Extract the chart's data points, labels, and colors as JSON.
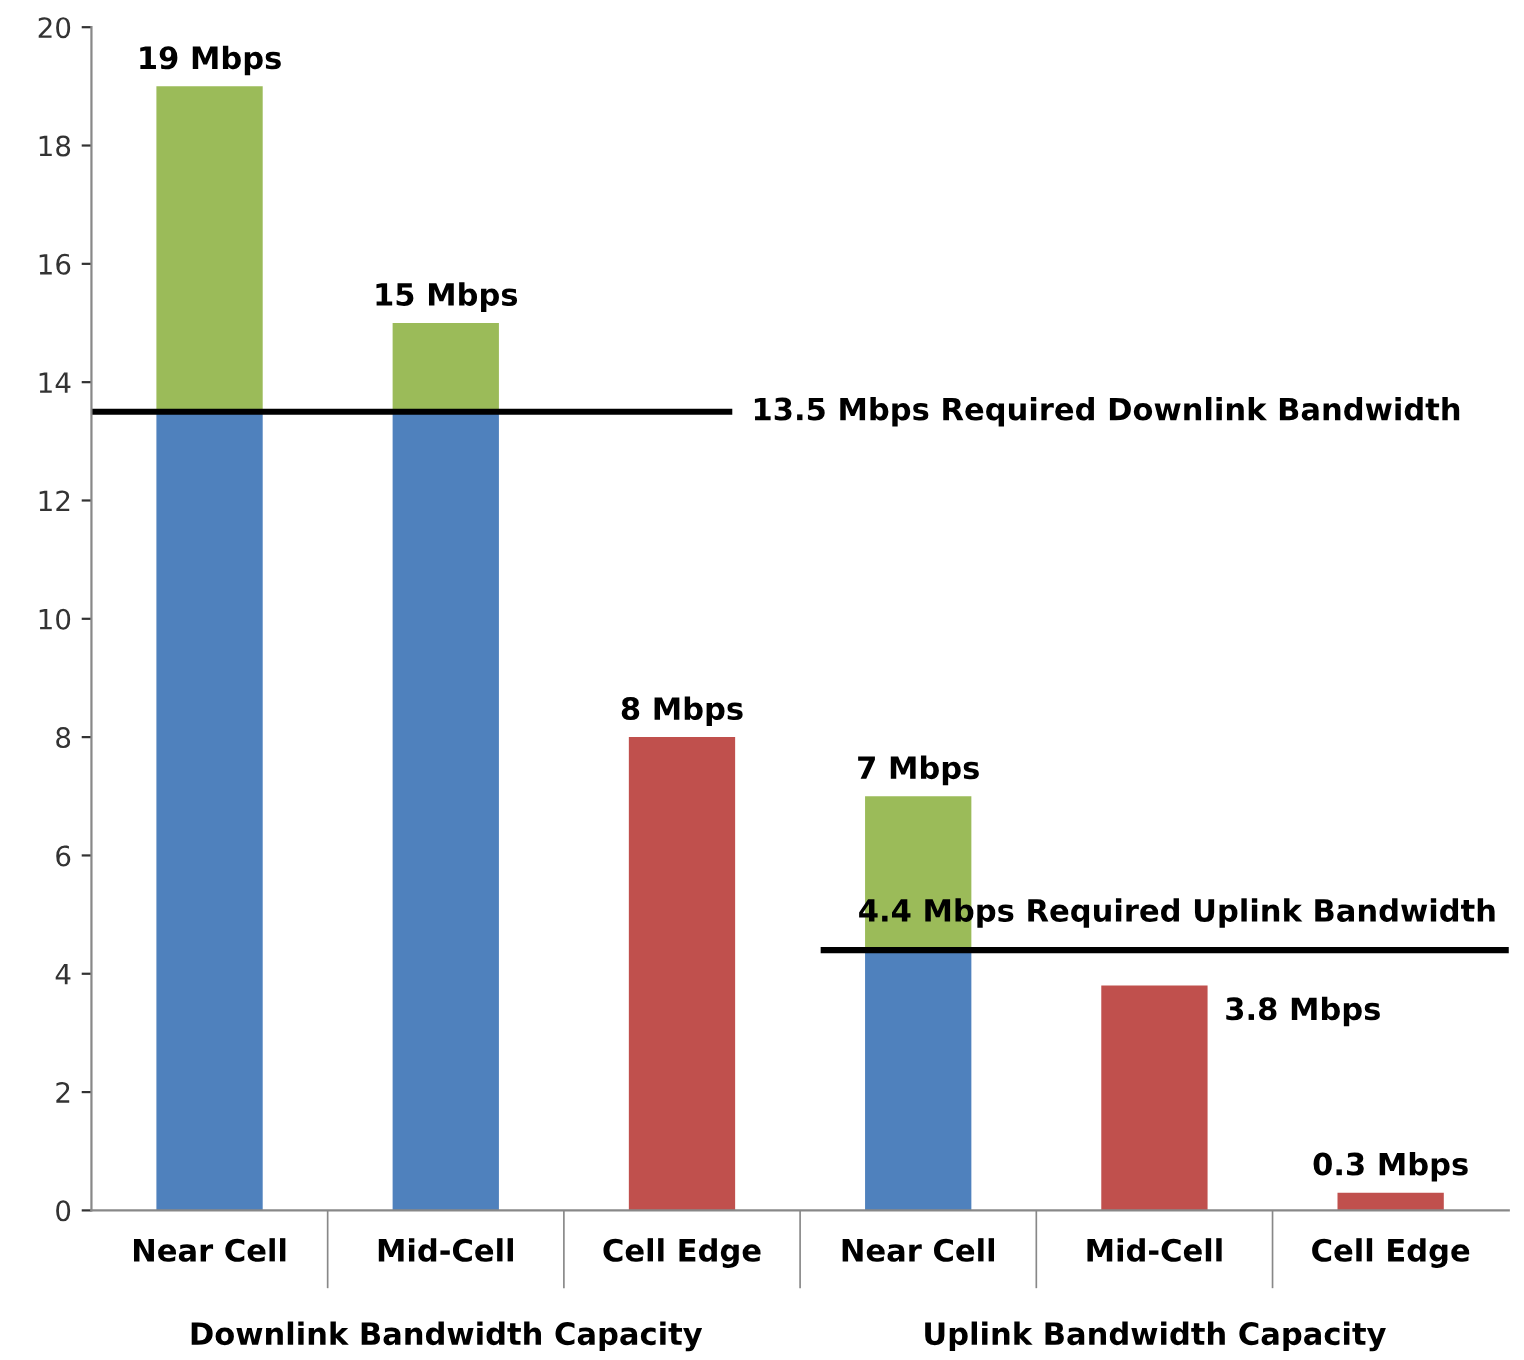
{
  "chart_data": {
    "type": "bar",
    "stacked": true,
    "categories": [
      "Near Cell",
      "Mid-Cell",
      "Cell Edge",
      "Near Cell",
      "Mid-Cell",
      "Cell Edge"
    ],
    "series": [
      {
        "color": "#4f81bd",
        "values": [
          13.5,
          13.5,
          null,
          4.4,
          null,
          null
        ]
      },
      {
        "color": "#9bbb59",
        "values": [
          5.5,
          1.5,
          null,
          2.6,
          null,
          null
        ]
      },
      {
        "color": "#c0504d",
        "values": [
          null,
          null,
          8,
          null,
          3.8,
          0.3
        ]
      }
    ],
    "totals": [
      "19 Mbps",
      "15 Mbps",
      "8 Mbps",
      "7 Mbps",
      "3.8 Mbps",
      "0.3 Mbps"
    ],
    "ylim": [
      0,
      20
    ],
    "yticks": [
      0,
      2,
      4,
      6,
      8,
      10,
      12,
      14,
      16,
      18,
      20
    ],
    "ref_lines": [
      {
        "axis": "y",
        "value": 13.5,
        "label": "13.5 Mbps Required Downlink Bandwidth",
        "color": "#000000"
      },
      {
        "axis": "y",
        "value": 4.4,
        "label": "4.4 Mbps Required Uplink Bandwidth",
        "color": "#000000"
      }
    ],
    "annotations": [
      "Downlink Bandwidth Capacity",
      "Uplink Bandwidth Capacity"
    ],
    "grid": false,
    "legend": false
  }
}
